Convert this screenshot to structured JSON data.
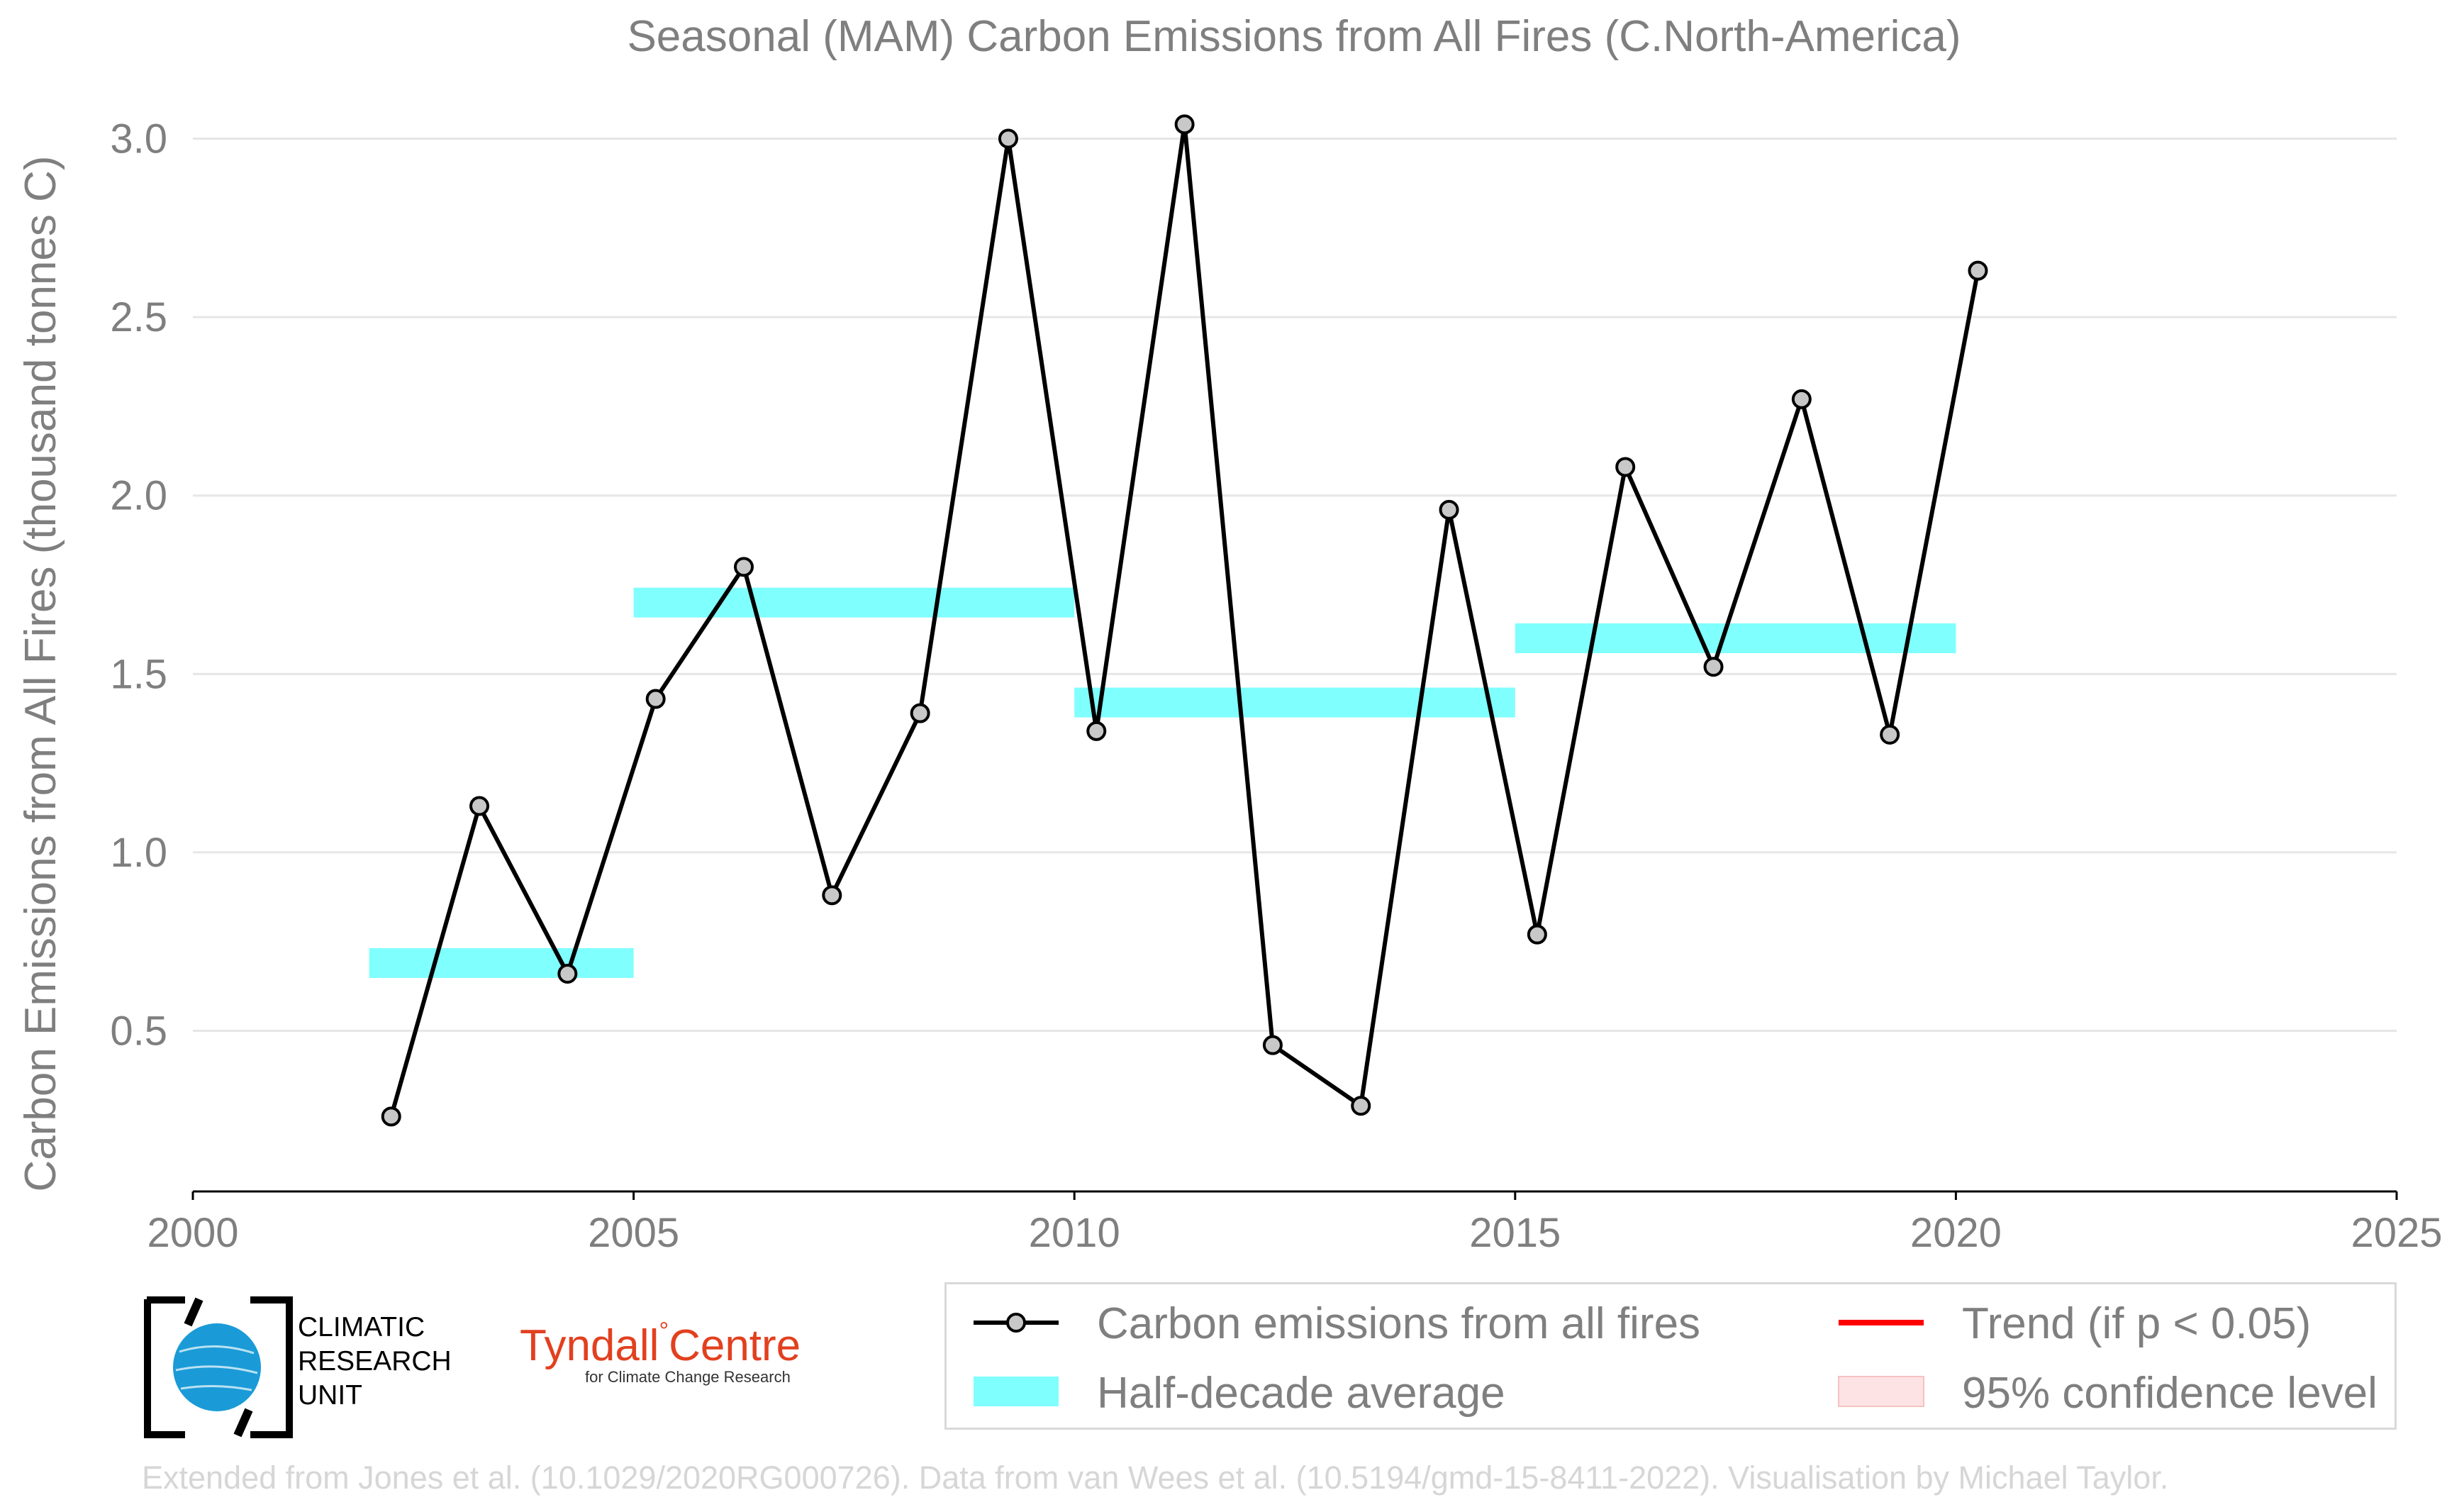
{
  "chart_data": {
    "type": "line",
    "title": "Seasonal (MAM) Carbon Emissions from All Fires (C.North-America)",
    "xlabel": "",
    "ylabel": "Carbon Emissions from All Fires (thousand tonnes C)",
    "xlim": [
      2000,
      2025
    ],
    "ylim": [
      0.05,
      3.15
    ],
    "xticks": [
      "2000",
      "2005",
      "2010",
      "2015",
      "2020",
      "2025"
    ],
    "yticks": [
      "0.5",
      "1.0",
      "1.5",
      "2.0",
      "2.5",
      "3.0"
    ],
    "grid": "horizontal",
    "series": [
      {
        "name": "Carbon emissions from all fires",
        "color": "#000000",
        "marker_fill": "#c8c8c8",
        "x": [
          2002.25,
          2003.25,
          2004.25,
          2005.25,
          2006.25,
          2007.25,
          2008.25,
          2009.25,
          2010.25,
          2011.25,
          2012.25,
          2013.25,
          2014.25,
          2015.25,
          2016.25,
          2017.25,
          2018.25,
          2019.25,
          2020.25
        ],
        "y": [
          0.26,
          1.13,
          0.66,
          1.43,
          1.8,
          0.88,
          1.39,
          3.0,
          1.34,
          3.04,
          0.46,
          0.29,
          1.96,
          0.77,
          2.08,
          1.52,
          2.27,
          1.33,
          2.63
        ]
      }
    ],
    "half_decade_average": {
      "name": "Half-decade average",
      "color": "#80ffff",
      "segments": [
        {
          "x0": 2002,
          "x1": 2005,
          "y": 0.69
        },
        {
          "x0": 2005,
          "x1": 2010,
          "y": 1.7
        },
        {
          "x0": 2010,
          "x1": 2015,
          "y": 1.42
        },
        {
          "x0": 2015,
          "x1": 2020,
          "y": 1.6
        }
      ]
    },
    "legend_position": "bottom-right",
    "legend": [
      {
        "label": "Carbon emissions from all fires",
        "symbol": "line-marker",
        "color": "#000000"
      },
      {
        "label": "Half-decade average",
        "symbol": "patch",
        "color": "#80ffff"
      },
      {
        "label": "Trend (if p < 0.05)",
        "symbol": "line",
        "color": "#ff0000"
      },
      {
        "label": "95% confidence level",
        "symbol": "patch",
        "color": "#fde3e3"
      }
    ]
  },
  "logos": {
    "cru": {
      "line1": "CLIMATIC",
      "line2": "RESEARCH",
      "line3": "UNIT"
    },
    "tyndall": {
      "name": "Tyndall",
      "degree": "°",
      "suffix": "Centre",
      "sub": "for Climate Change Research"
    }
  },
  "footer": "Extended from Jones et al. (10.1029/2020RG000726). Data from van Wees et al. (10.5194/gmd-15-8411-2022). Visualisation by Michael Taylor."
}
